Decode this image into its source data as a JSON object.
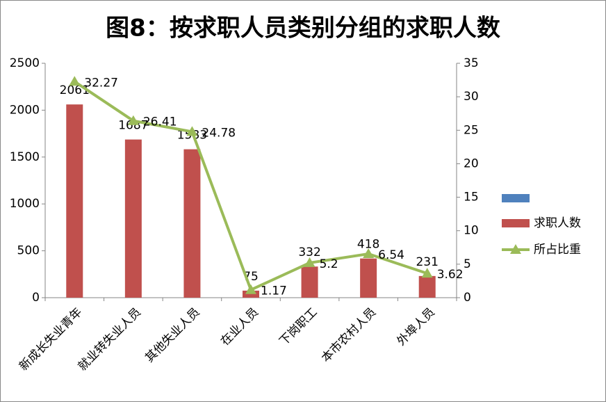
{
  "chart_data": {
    "type": "bar",
    "title": "图8：按求职人员类别分组的求职人数",
    "categories": [
      "新成长失业青年",
      "就业转失业人员",
      "其他失业人员",
      "在业人员",
      "下岗职工",
      "本市农村人员",
      "外埠人员"
    ],
    "series": [
      {
        "name": "求职人数",
        "type": "bar",
        "color": "#c0504d",
        "values": [
          2061,
          1687,
          1583,
          75,
          332,
          418,
          231
        ]
      },
      {
        "name": "所占比重",
        "type": "line",
        "axis": "y2",
        "color": "#9bbb59",
        "values": [
          32.27,
          26.41,
          24.78,
          1.17,
          5.2,
          6.54,
          3.62
        ]
      }
    ],
    "ylim": [
      0,
      2500
    ],
    "yticks": [
      0,
      500,
      1000,
      1500,
      2000,
      2500
    ],
    "y2lim": [
      0,
      35
    ],
    "y2ticks": [
      0,
      5,
      10,
      15,
      20,
      25,
      30,
      35
    ],
    "legend": "right"
  }
}
